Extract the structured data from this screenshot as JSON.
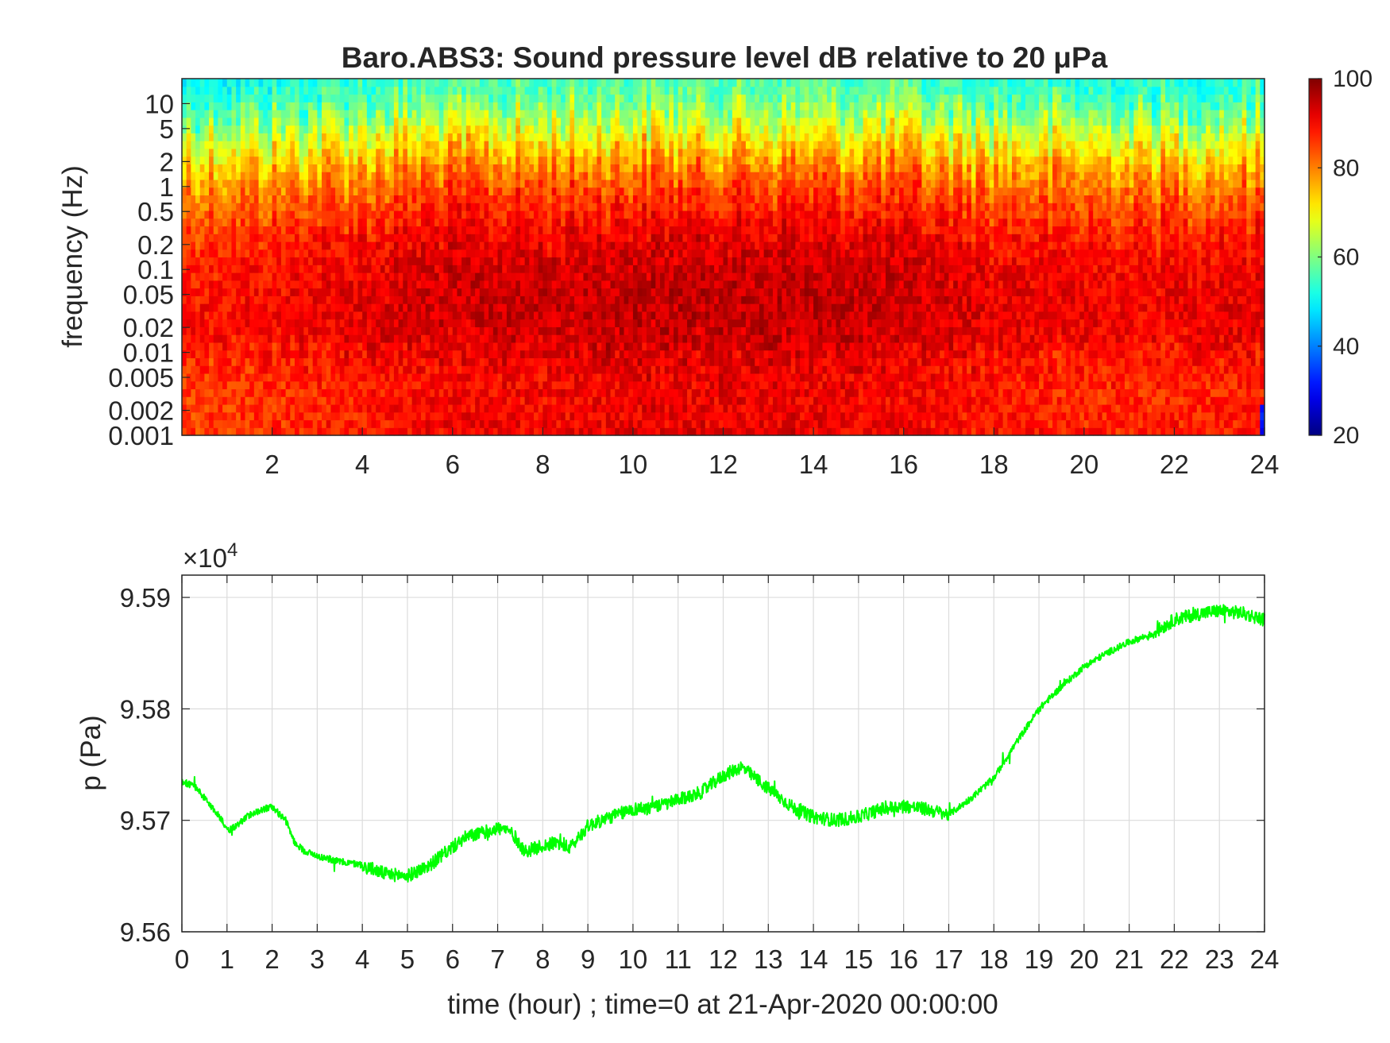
{
  "figure": {
    "title": "Baro.ABS3: Sound pressure level dB relative to 20 μPa"
  },
  "chart_data": [
    {
      "type": "heatmap",
      "name": "spectrogram",
      "title": "Baro.ABS3: Sound pressure level dB relative to 20 μPa",
      "xlabel": "",
      "ylabel": "frequency (Hz)",
      "x_unit": "hour",
      "xlim": [
        0,
        24
      ],
      "ylim": [
        0.001,
        20
      ],
      "y_scale": "log",
      "x_ticks": [
        2,
        4,
        6,
        8,
        10,
        12,
        14,
        16,
        18,
        20,
        22,
        24
      ],
      "x_tick_labels": [
        "2",
        "4",
        "6",
        "8",
        "10",
        "12",
        "14",
        "16",
        "18",
        "20",
        "22",
        "24"
      ],
      "y_ticks": [
        10,
        5,
        2,
        1,
        0.5,
        0.2,
        0.1,
        0.05,
        0.02,
        0.01,
        0.005,
        0.002,
        0.001
      ],
      "y_tick_labels": [
        "10",
        "5",
        "2",
        "1",
        "0.5",
        "0.2",
        "0.1",
        "0.05",
        "0.02",
        "0.01",
        "0.005",
        "0.002",
        "0.001"
      ],
      "colormap": "jet",
      "colorbar": {
        "range": [
          20,
          100
        ],
        "ticks": [
          100,
          80,
          60,
          40,
          20
        ],
        "tick_labels": [
          "100",
          "80",
          "60",
          "40",
          "20"
        ],
        "unit": "dB"
      },
      "level_profile": {
        "freq_hz": [
          0.001,
          0.002,
          0.005,
          0.01,
          0.02,
          0.05,
          0.1,
          0.2,
          0.5,
          1,
          2,
          5,
          10,
          20
        ],
        "typical_db": [
          89,
          88,
          88,
          90,
          92,
          92,
          91,
          90,
          86,
          82,
          76,
          66,
          57,
          53
        ]
      },
      "hour_offset_db": {
        "hours": [
          0,
          2,
          4,
          6,
          8,
          10,
          12,
          14,
          16,
          18,
          20,
          22,
          24
        ],
        "offset_db": [
          -3,
          -2,
          0,
          2,
          2,
          3,
          3,
          3,
          2,
          0,
          -1,
          -1,
          0
        ]
      },
      "features": {
        "low_level_corner_hours": [
          23.7,
          24
        ],
        "low_level_corner_freq_hz": [
          0.001,
          0.01
        ],
        "low_level_corner_db": 25
      }
    },
    {
      "type": "line",
      "name": "pressure",
      "xlabel": "time (hour) ; time=0 at 21-Apr-2020 00:00:00",
      "ylabel": "p (Pa)",
      "y_exponent_label": "×10",
      "y_exponent": "4",
      "xlim": [
        0,
        24
      ],
      "ylim": [
        95600,
        95920
      ],
      "grid": true,
      "line_color": "#00ff00",
      "x_ticks": [
        0,
        1,
        2,
        3,
        4,
        5,
        6,
        7,
        8,
        9,
        10,
        11,
        12,
        13,
        14,
        15,
        16,
        17,
        18,
        19,
        20,
        21,
        22,
        23,
        24
      ],
      "x_tick_labels": [
        "0",
        "1",
        "2",
        "3",
        "4",
        "5",
        "6",
        "7",
        "8",
        "9",
        "10",
        "11",
        "12",
        "13",
        "14",
        "15",
        "16",
        "17",
        "18",
        "19",
        "20",
        "21",
        "22",
        "23",
        "24"
      ],
      "y_ticks": [
        95600,
        95700,
        95800,
        95900
      ],
      "y_tick_labels": [
        "9.56",
        "9.57",
        "9.58",
        "9.59"
      ],
      "series": [
        {
          "x": [
            0,
            0.3,
            0.6,
            0.9,
            1.0,
            1.2,
            1.5,
            1.8,
            2.0,
            2.3,
            2.5,
            2.7,
            3.0,
            3.5,
            4.0,
            4.5,
            5.0,
            5.5,
            6.0,
            6.3,
            6.6,
            7.0,
            7.3,
            7.6,
            8.0,
            8.3,
            8.6,
            9.0,
            9.5,
            10.0,
            10.5,
            11.0,
            11.5,
            12.0,
            12.4,
            12.8,
            13.2,
            13.6,
            14.0,
            14.5,
            15.0,
            15.5,
            16.0,
            16.5,
            17.0,
            17.5,
            18.0,
            18.5,
            19.0,
            19.5,
            20.0,
            20.5,
            21.0,
            21.5,
            22.0,
            22.5,
            23.0,
            23.5,
            24.0
          ],
          "y": [
            95735,
            95730,
            95715,
            95700,
            95690,
            95695,
            95705,
            95710,
            95712,
            95700,
            95680,
            95673,
            95668,
            95663,
            95660,
            95652,
            95650,
            95660,
            95676,
            95685,
            95688,
            95693,
            95690,
            95672,
            95677,
            95680,
            95675,
            95695,
            95703,
            95710,
            95712,
            95718,
            95725,
            95740,
            95748,
            95735,
            95722,
            95710,
            95703,
            95700,
            95703,
            95710,
            95713,
            95710,
            95705,
            95720,
            95738,
            95770,
            95800,
            95820,
            95838,
            95850,
            95860,
            95867,
            95880,
            95885,
            95888,
            95886,
            95880
          ]
        }
      ]
    }
  ]
}
